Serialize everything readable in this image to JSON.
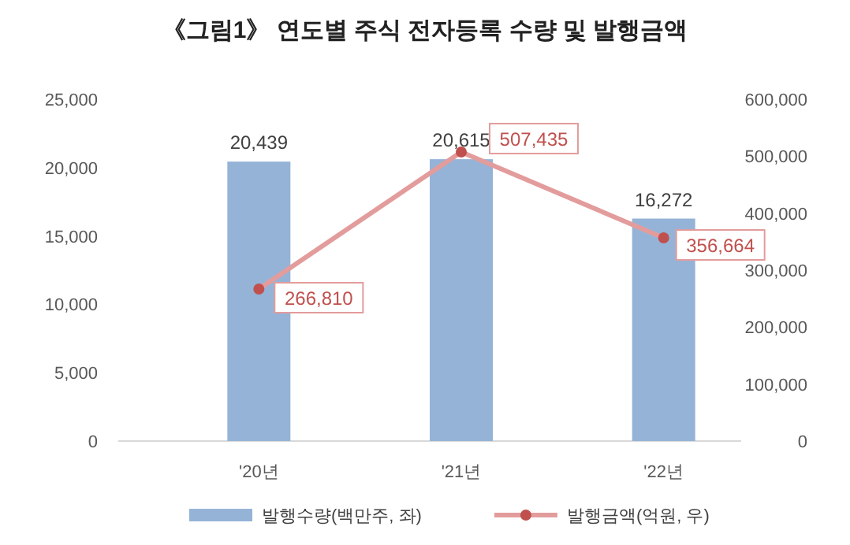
{
  "chart_data": {
    "type": "bar",
    "title": "《그림1》 연도별 주식 전자등록 수량 및 발행금액",
    "categories": [
      "'20년",
      "'21년",
      "'22년"
    ],
    "series": [
      {
        "name": "발행수량(백만주, 좌)",
        "color": "#95b3d7",
        "values": [
          20439,
          20615,
          16272
        ],
        "value_labels": [
          "20,439",
          "20,615",
          "16,272"
        ]
      },
      {
        "name": "발행금액(억원, 우)",
        "type": "line",
        "axis": "y2",
        "color": "#e39c9c",
        "marker": "circle",
        "values": [
          266810,
          507435,
          356664
        ],
        "value_labels": [
          "266,810",
          "507,435",
          "356,664"
        ]
      }
    ],
    "ylim": [
      0,
      25000
    ],
    "yticks": [
      0,
      {
        "value": 5000,
        "label": "5,000"
      },
      {
        "value": 10000,
        "label": "10,000"
      },
      {
        "value": 15000,
        "label": "15,000"
      },
      {
        "value": 20000,
        "label": "20,000"
      },
      {
        "value": 25000,
        "label": "25,000"
      }
    ],
    "y2lim": [
      0,
      600000
    ],
    "y2ticks": [
      0,
      {
        "value": 100000,
        "label": "100,000"
      },
      {
        "value": 200000,
        "label": "200,000"
      },
      {
        "value": 300000,
        "label": "300,000"
      },
      {
        "value": 400000,
        "label": "400,000"
      },
      {
        "value": 500000,
        "label": "500,000"
      },
      {
        "value": 600000,
        "label": "600,000"
      }
    ],
    "legend": "bottom"
  }
}
